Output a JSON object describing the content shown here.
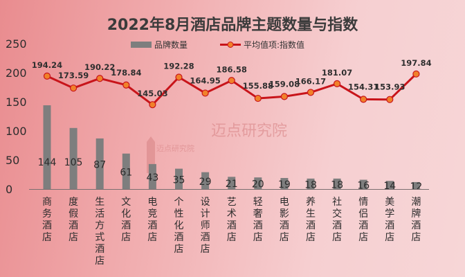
{
  "chart_data": {
    "type": "bar+line",
    "title": "2022年8月酒店品牌主题数量与指数",
    "categories": [
      "商务酒店",
      "度假酒店",
      "生活方式酒店",
      "文化酒店",
      "电竞酒店",
      "个性化酒店",
      "设计师酒店",
      "艺术酒店",
      "轻奢酒店",
      "电影酒店",
      "养生酒店",
      "社交酒店",
      "情侣酒店",
      "美学酒店",
      "潮牌酒店"
    ],
    "series": [
      {
        "name": "品牌数量",
        "kind": "bar",
        "color": "#7e7e7e",
        "values": [
          144,
          105,
          87,
          61,
          43,
          35,
          29,
          21,
          20,
          19,
          18,
          18,
          16,
          14,
          12
        ]
      },
      {
        "name": "平均值项:指数值",
        "kind": "line",
        "color": "#c8141a",
        "values": [
          194.24,
          173.59,
          190.22,
          178.84,
          145.03,
          192.28,
          164.95,
          186.58,
          155.88,
          159.08,
          166.17,
          181.07,
          154.31,
          153.93,
          197.84
        ]
      }
    ],
    "ylim": [
      0,
      250
    ],
    "yticks": [
      0,
      50,
      100,
      150,
      200,
      250
    ],
    "legend": "top-center",
    "grid": false
  },
  "watermark": {
    "brand": "迈点研究院"
  }
}
